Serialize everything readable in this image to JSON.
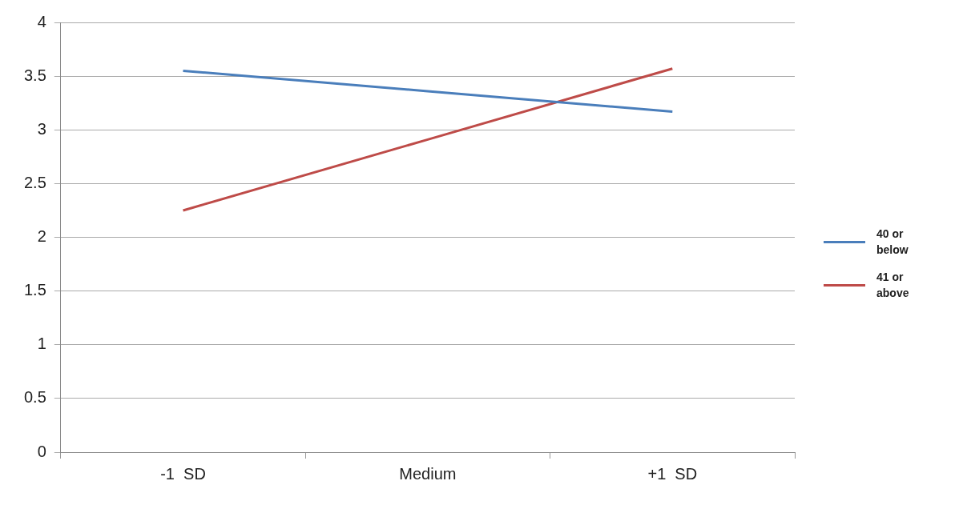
{
  "chart_data": {
    "type": "line",
    "categories": [
      "-1  SD",
      "Medium",
      "+1  SD"
    ],
    "series": [
      {
        "name": "40 or below",
        "color": "#4a7ebb",
        "values": [
          3.55,
          3.36,
          3.17
        ]
      },
      {
        "name": "41 or above",
        "color": "#be4b48",
        "values": [
          2.25,
          2.91,
          3.57
        ]
      }
    ],
    "ylim": [
      0,
      4
    ],
    "yticks": [
      0,
      0.5,
      1,
      1.5,
      2,
      2.5,
      3,
      3.5,
      4
    ],
    "grid": "y",
    "legend": "right",
    "marker": "none",
    "line_style": "solid"
  }
}
